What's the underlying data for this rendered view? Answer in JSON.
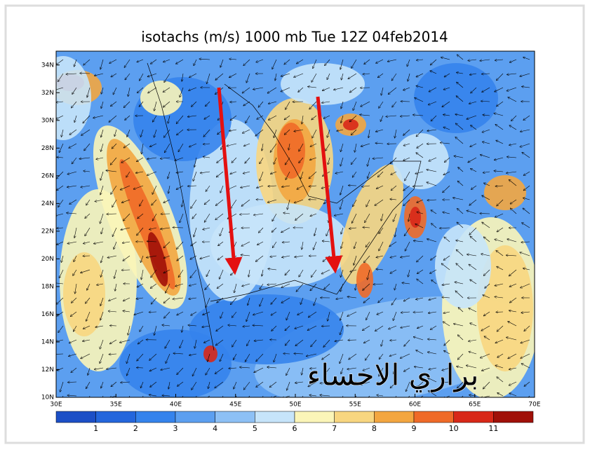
{
  "map": {
    "title": "isotachs (m/s) 1000 mb Tue 12Z 04feb2014",
    "lon_range": [
      30,
      70
    ],
    "lat_range": [
      10,
      35
    ],
    "lon_ticks": [
      {
        "value": 30,
        "label": "30E"
      },
      {
        "value": 35,
        "label": "35E"
      },
      {
        "value": 40,
        "label": "40E"
      },
      {
        "value": 45,
        "label": "45E"
      },
      {
        "value": 50,
        "label": "50E"
      },
      {
        "value": 55,
        "label": "55E"
      },
      {
        "value": 60,
        "label": "60E"
      },
      {
        "value": 65,
        "label": "65E"
      },
      {
        "value": 70,
        "label": "70E"
      }
    ],
    "lat_ticks": [
      {
        "value": 10,
        "label": "10N"
      },
      {
        "value": 12,
        "label": "12N"
      },
      {
        "value": 14,
        "label": "14N"
      },
      {
        "value": 16,
        "label": "16N"
      },
      {
        "value": 18,
        "label": "18N"
      },
      {
        "value": 20,
        "label": "20N"
      },
      {
        "value": 22,
        "label": "22N"
      },
      {
        "value": 24,
        "label": "24N"
      },
      {
        "value": 26,
        "label": "26N"
      },
      {
        "value": 28,
        "label": "28N"
      },
      {
        "value": 30,
        "label": "30N"
      },
      {
        "value": 32,
        "label": "32N"
      },
      {
        "value": 34,
        "label": "34N"
      }
    ],
    "colorbar": {
      "colors": [
        "#1c4fc6",
        "#2466dc",
        "#3583ec",
        "#5c9ff0",
        "#8dc0f5",
        "#c6e4fa",
        "#fbf5b8",
        "#f8d680",
        "#f3a640",
        "#ef6a28",
        "#d82818",
        "#a01008"
      ],
      "labels": [
        1,
        2,
        3,
        4,
        5,
        6,
        7,
        8,
        9,
        10,
        11
      ]
    },
    "watermark": "براري الاحساء"
  }
}
